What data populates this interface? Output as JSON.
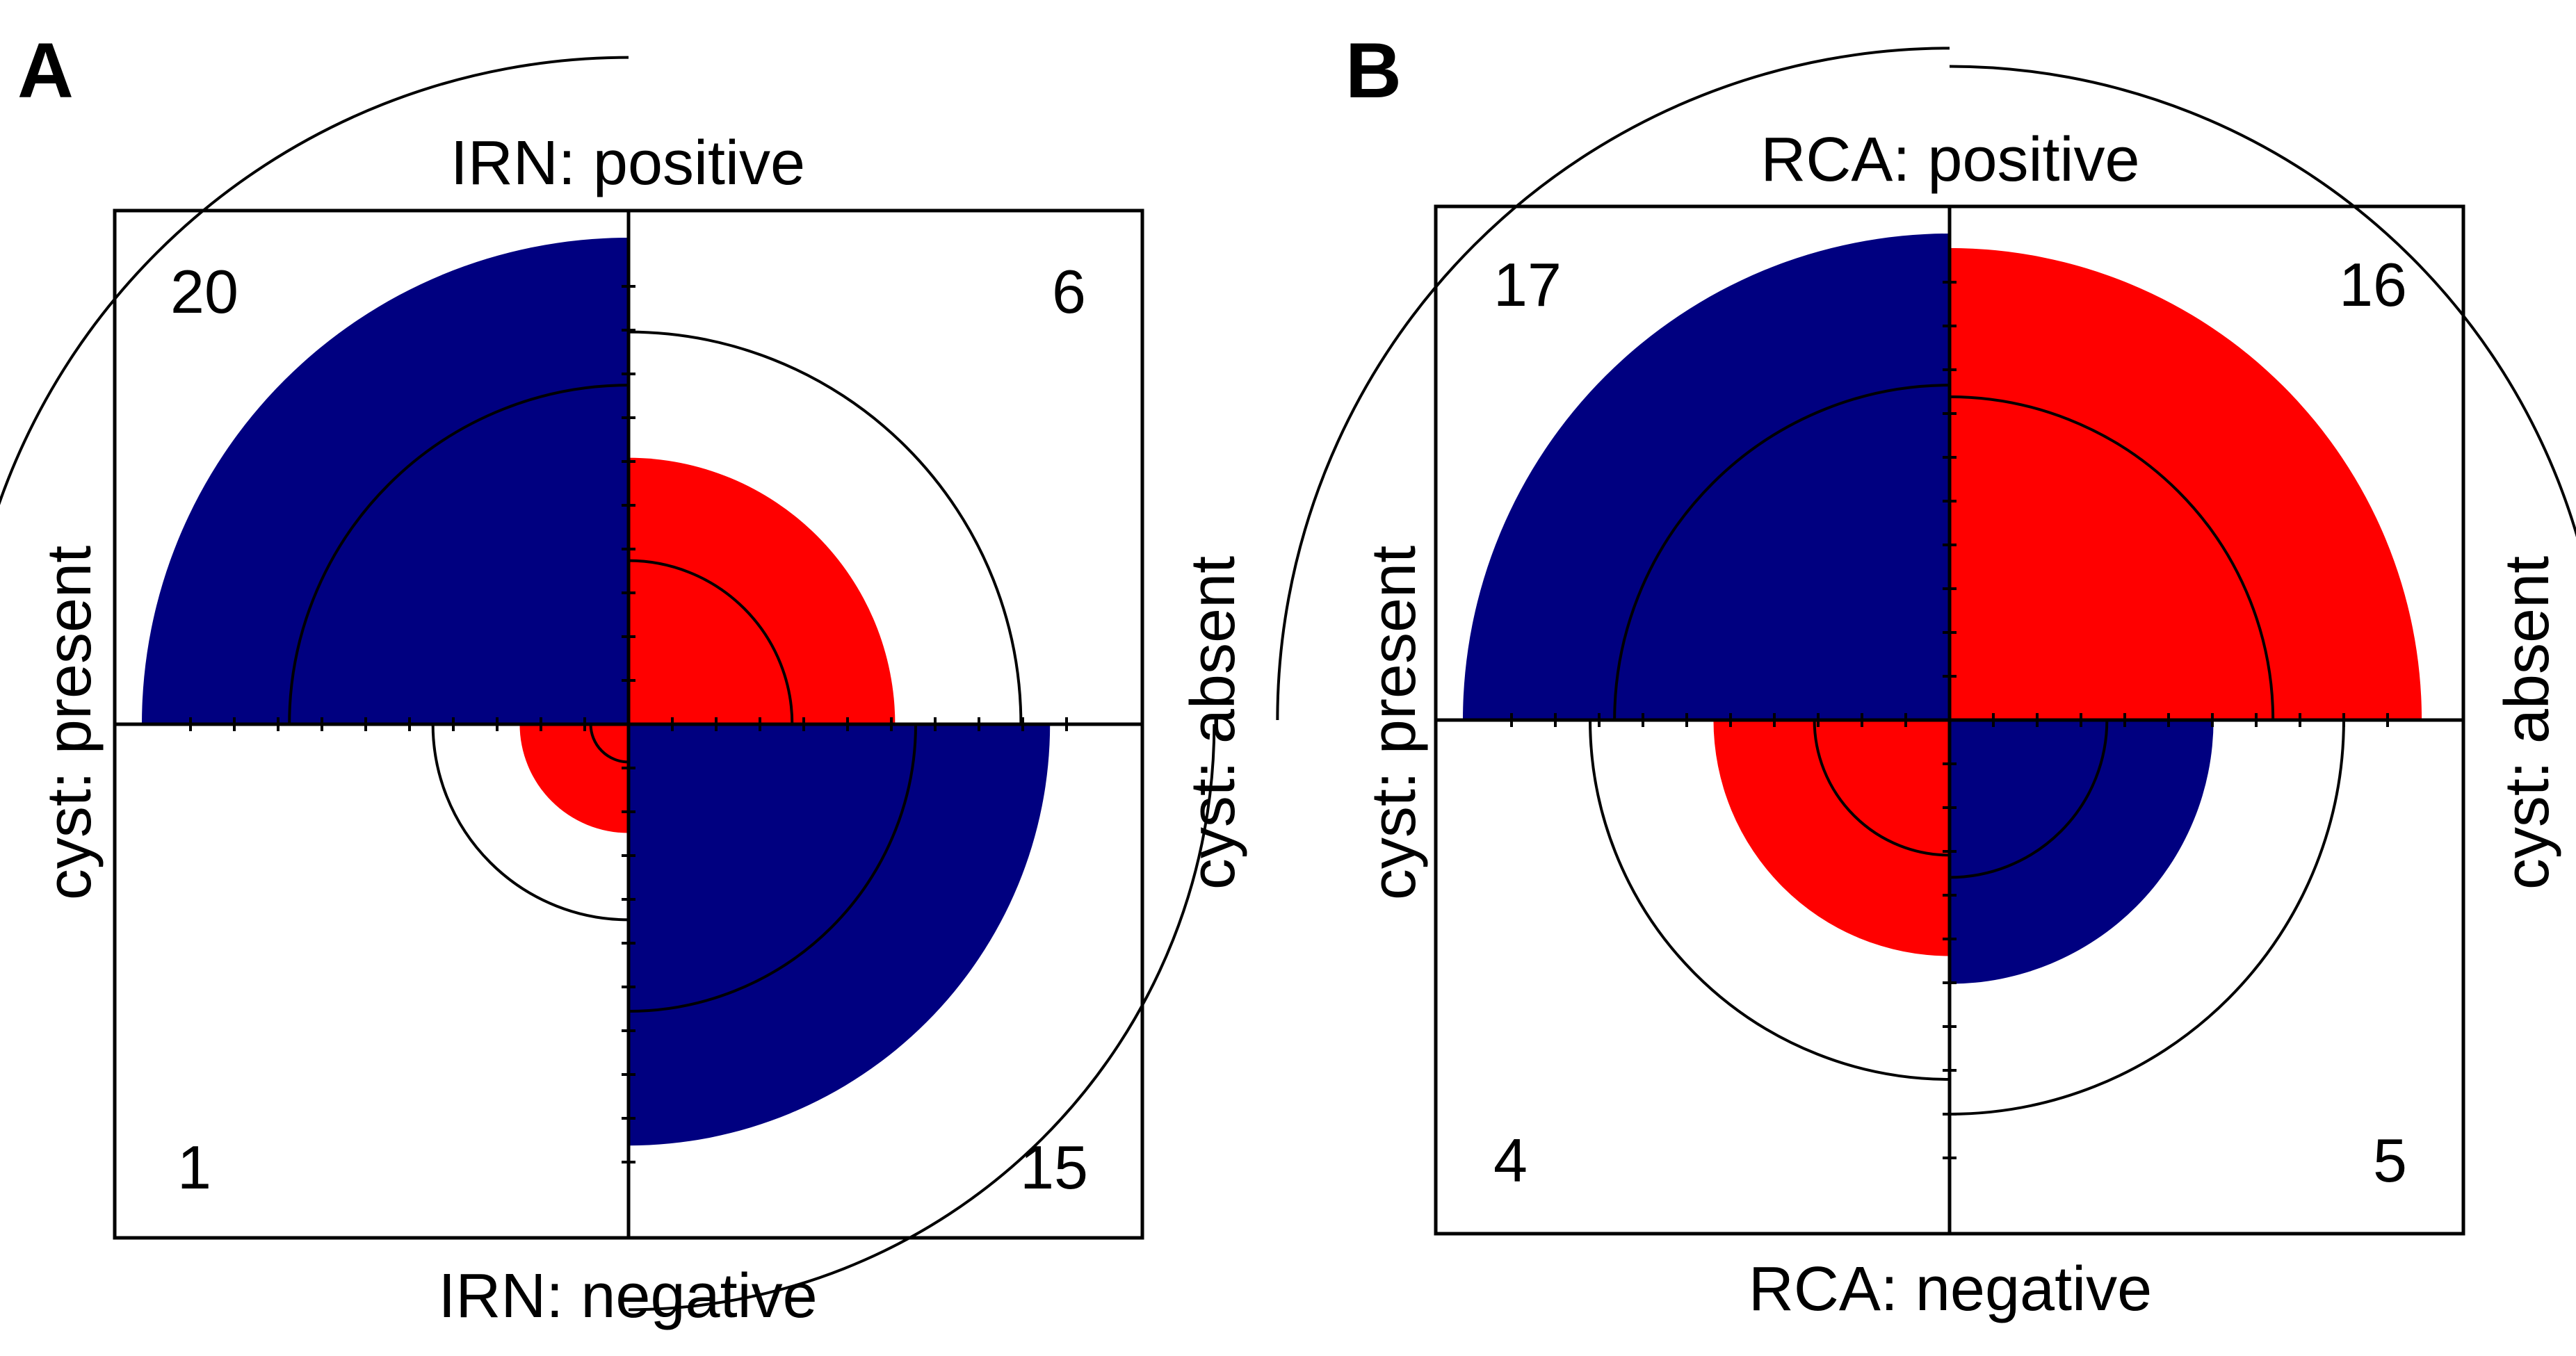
{
  "chart_data": [
    {
      "type": "fourfold",
      "panel": "A",
      "title_top": "IRN: positive",
      "title_bottom": "IRN: negative",
      "label_left": "cyst: present",
      "label_right": "cyst: absent",
      "cells": [
        {
          "position": "top-left",
          "row": "IRN: positive",
          "col": "cyst: present",
          "count": 20,
          "color": "#000080"
        },
        {
          "position": "top-right",
          "row": "IRN: positive",
          "col": "cyst: absent",
          "count": 6,
          "color": "#ff0000"
        },
        {
          "position": "bottom-left",
          "row": "IRN: negative",
          "col": "cyst: present",
          "count": 1,
          "color": "#ff0000"
        },
        {
          "position": "bottom-right",
          "row": "IRN: negative",
          "col": "cyst: absent",
          "count": 15,
          "color": "#000080"
        }
      ]
    },
    {
      "type": "fourfold",
      "panel": "B",
      "title_top": "RCA: positive",
      "title_bottom": "RCA: negative",
      "label_left": "cyst: present",
      "label_right": "cyst: absent",
      "cells": [
        {
          "position": "top-left",
          "row": "RCA: positive",
          "col": "cyst: present",
          "count": 17,
          "color": "#000080"
        },
        {
          "position": "top-right",
          "row": "RCA: positive",
          "col": "cyst: absent",
          "count": 16,
          "color": "#ff0000"
        },
        {
          "position": "bottom-left",
          "row": "RCA: negative",
          "col": "cyst: present",
          "count": 4,
          "color": "#ff0000"
        },
        {
          "position": "bottom-right",
          "row": "RCA: negative",
          "col": "cyst: absent",
          "count": 5,
          "color": "#000080"
        }
      ]
    }
  ]
}
